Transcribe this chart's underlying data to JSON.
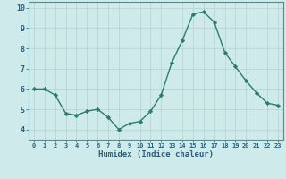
{
  "x": [
    0,
    1,
    2,
    3,
    4,
    5,
    6,
    7,
    8,
    9,
    10,
    11,
    12,
    13,
    14,
    15,
    16,
    17,
    18,
    19,
    20,
    21,
    22,
    23
  ],
  "y": [
    6.0,
    6.0,
    5.7,
    4.8,
    4.7,
    4.9,
    5.0,
    4.6,
    4.0,
    4.3,
    4.4,
    4.9,
    5.7,
    7.3,
    8.4,
    9.7,
    9.8,
    9.3,
    7.8,
    7.1,
    6.4,
    5.8,
    5.3,
    5.2
  ],
  "title": "",
  "xlabel": "Humidex (Indice chaleur)",
  "ylabel": "",
  "ylim": [
    3.5,
    10.3
  ],
  "xlim": [
    -0.5,
    23.5
  ],
  "yticks": [
    4,
    5,
    6,
    7,
    8,
    9,
    10
  ],
  "xtick_labels": [
    "0",
    "1",
    "2",
    "3",
    "4",
    "5",
    "6",
    "7",
    "8",
    "9",
    "10",
    "11",
    "12",
    "13",
    "14",
    "15",
    "16",
    "17",
    "18",
    "19",
    "20",
    "21",
    "22",
    "23"
  ],
  "line_color": "#2a7d6f",
  "marker": "D",
  "marker_size": 2.2,
  "bg_color": "#ceeaea",
  "grid_color": "#b8d0d0",
  "axis_bg": "#ceeaea",
  "xlabel_color": "#2a5f7a",
  "tick_color": "#2a5f7a",
  "border_color": "#5a8a8a"
}
